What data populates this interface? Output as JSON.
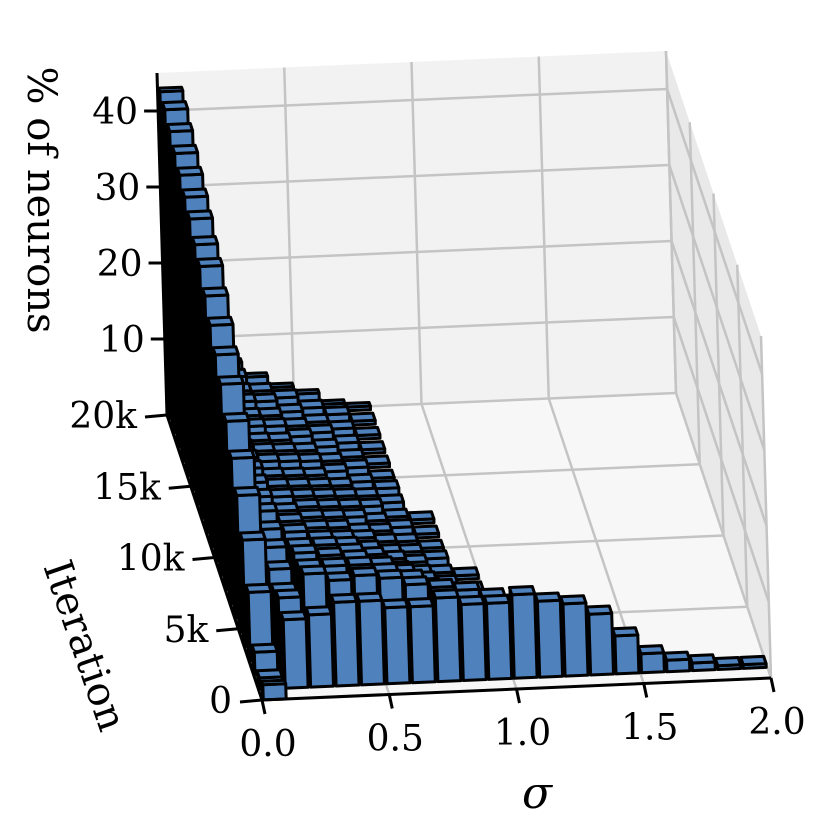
{
  "chart_data": {
    "type": "bar3d",
    "title": "",
    "xlabel": "σ",
    "ylabel": "Iteration",
    "zlabel": "% of neurons",
    "x_ticks": [
      "0.0",
      "0.5",
      "1.0",
      "1.5",
      "2.0"
    ],
    "y_ticks": [
      "0",
      "5k",
      "10k",
      "15k",
      "20k"
    ],
    "z_ticks": [
      "10",
      "20",
      "30",
      "40"
    ],
    "xlim": [
      0,
      2.0
    ],
    "ylim": [
      0,
      20000
    ],
    "zlim": [
      0,
      45
    ],
    "grid": true,
    "bar_color": "#4f81bd",
    "edge_color": "#000000",
    "sigma_bins": [
      0.05,
      0.15,
      0.25,
      0.35,
      0.45,
      0.55,
      0.65,
      0.75,
      0.85,
      0.95,
      1.05,
      1.15,
      1.25,
      1.35,
      1.45,
      1.55,
      1.65,
      1.75,
      1.85,
      1.95
    ],
    "iterations": [
      0,
      1000,
      2000,
      3000,
      4000,
      5000,
      6000,
      7000,
      8000,
      9000,
      10000,
      11000,
      12000,
      13000,
      14000,
      15000,
      16000,
      17000,
      18000,
      19000,
      20000
    ],
    "series": [
      {
        "iteration": 0,
        "values": [
          2,
          0,
          0,
          0,
          0,
          0,
          0,
          0,
          0,
          0,
          0,
          0,
          0,
          0,
          0,
          0,
          0,
          0,
          0,
          0
        ]
      },
      {
        "iteration": 1000,
        "values": [
          1.5,
          9,
          9.5,
          11,
          11,
          10,
          10,
          11,
          10,
          10,
          11,
          10,
          9.5,
          8,
          5,
          2.5,
          1.5,
          1,
          0.5,
          0.5
        ]
      },
      {
        "iteration": 2000,
        "values": [
          3,
          10,
          13,
          12,
          12.5,
          12,
          11,
          10.5,
          10,
          9,
          7,
          6,
          5,
          3,
          1.5,
          0.5,
          0,
          0,
          0,
          0
        ]
      },
      {
        "iteration": 3000,
        "values": [
          9,
          9,
          12,
          12,
          12,
          11,
          10,
          8.5,
          7,
          5,
          3,
          1.5,
          0.5,
          0,
          0,
          0,
          0,
          0,
          0,
          0
        ]
      },
      {
        "iteration": 4000,
        "values": [
          14,
          10,
          12,
          11.5,
          11,
          10,
          8,
          6,
          4,
          2.5,
          1,
          0.5,
          0,
          0,
          0,
          0,
          0,
          0,
          0,
          0
        ]
      },
      {
        "iteration": 5000,
        "values": [
          18,
          11,
          11,
          11,
          10,
          8.5,
          7,
          5,
          3,
          1.5,
          0.5,
          0,
          0,
          0,
          0,
          0,
          0,
          0,
          0,
          0
        ]
      },
      {
        "iteration": 6000,
        "values": [
          21,
          11.5,
          11,
          10,
          9,
          7.5,
          5.5,
          4,
          2,
          1,
          0.5,
          0,
          0,
          0,
          0,
          0,
          0,
          0,
          0,
          0
        ]
      },
      {
        "iteration": 7000,
        "values": [
          24,
          12,
          10.5,
          9.5,
          8,
          6.5,
          5,
          3,
          1.5,
          0.5,
          0,
          0,
          0,
          0,
          0,
          0,
          0,
          0,
          0,
          0
        ]
      },
      {
        "iteration": 8000,
        "values": [
          27,
          12,
          10,
          9,
          7.5,
          6,
          4,
          2.5,
          1,
          0.5,
          0,
          0,
          0,
          0,
          0,
          0,
          0,
          0,
          0,
          0
        ]
      },
      {
        "iteration": 9000,
        "values": [
          29,
          12,
          10,
          8.5,
          7,
          5,
          3.5,
          2,
          1,
          0,
          0,
          0,
          0,
          0,
          0,
          0,
          0,
          0,
          0,
          0
        ]
      },
      {
        "iteration": 10000,
        "values": [
          31,
          12,
          9.5,
          8,
          6.5,
          5,
          3,
          1.5,
          0.5,
          0,
          0,
          0,
          0,
          0,
          0,
          0,
          0,
          0,
          0,
          0
        ]
      },
      {
        "iteration": 11000,
        "values": [
          33,
          11.5,
          9,
          7.5,
          6,
          4.5,
          2.5,
          1.5,
          0.5,
          0,
          0,
          0,
          0,
          0,
          0,
          0,
          0,
          0,
          0,
          0
        ]
      },
      {
        "iteration": 12000,
        "values": [
          35,
          11,
          9,
          7,
          5.5,
          4,
          2.5,
          1,
          0.5,
          0,
          0,
          0,
          0,
          0,
          0,
          0,
          0,
          0,
          0,
          0
        ]
      },
      {
        "iteration": 13000,
        "values": [
          36,
          11,
          8.5,
          7,
          5,
          3.5,
          2,
          1,
          0,
          0,
          0,
          0,
          0,
          0,
          0,
          0,
          0,
          0,
          0,
          0
        ]
      },
      {
        "iteration": 14000,
        "values": [
          37.5,
          10.5,
          8,
          6.5,
          5,
          3.5,
          2,
          1,
          0,
          0,
          0,
          0,
          0,
          0,
          0,
          0,
          0,
          0,
          0,
          0
        ]
      },
      {
        "iteration": 15000,
        "values": [
          38.5,
          10.5,
          8,
          6,
          4.5,
          3,
          2,
          0.5,
          0,
          0,
          0,
          0,
          0,
          0,
          0,
          0,
          0,
          0,
          0,
          0
        ]
      },
      {
        "iteration": 16000,
        "values": [
          39.5,
          10,
          7.5,
          6,
          4.5,
          3,
          1.5,
          0.5,
          0,
          0,
          0,
          0,
          0,
          0,
          0,
          0,
          0,
          0,
          0,
          0
        ]
      },
      {
        "iteration": 17000,
        "values": [
          40.5,
          10,
          7.5,
          5.5,
          4,
          3,
          1.5,
          0.5,
          0,
          0,
          0,
          0,
          0,
          0,
          0,
          0,
          0,
          0,
          0,
          0
        ]
      },
      {
        "iteration": 18000,
        "values": [
          41.5,
          9.5,
          7,
          5.5,
          4,
          2.5,
          1.5,
          0.5,
          0,
          0,
          0,
          0,
          0,
          0,
          0,
          0,
          0,
          0,
          0,
          0
        ]
      },
      {
        "iteration": 19000,
        "values": [
          42.5,
          9.5,
          7,
          5,
          4,
          2.5,
          1.5,
          0.5,
          0,
          0,
          0,
          0,
          0,
          0,
          0,
          0,
          0,
          0,
          0,
          0
        ]
      },
      {
        "iteration": 20000,
        "values": [
          43,
          9,
          7,
          5,
          3.5,
          2.5,
          1,
          0.5,
          0,
          0,
          0,
          0,
          0,
          0,
          0,
          0,
          0,
          0,
          0,
          0
        ]
      }
    ]
  }
}
